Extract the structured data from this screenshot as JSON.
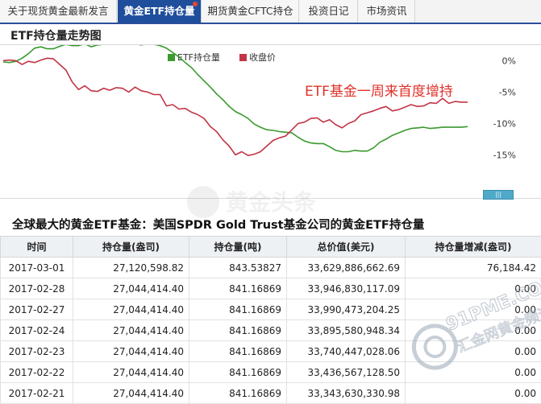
{
  "tabs": [
    {
      "label": "关于现货黄金最新发言",
      "active": false
    },
    {
      "label": "黄金ETF持仓量",
      "active": true
    },
    {
      "label": "期货黄金CFTC持仓",
      "active": false
    },
    {
      "label": "投资日记",
      "active": false
    },
    {
      "label": "市场资讯",
      "active": false
    }
  ],
  "section_title": "ETF持仓量走势图",
  "chart_data": {
    "type": "line",
    "annotation": "ETF基金一周来首度增持",
    "legend_placement": "top-center",
    "y_ticks": [
      "0%",
      "-5%",
      "-10%",
      "-15%"
    ],
    "ylim": [
      -17,
      3
    ],
    "grid": false,
    "series": [
      {
        "name": "ETF持仓量",
        "color": "#3a9a2e",
        "values": [
          -0.2,
          -0.3,
          -0.1,
          0.4,
          1.1,
          2.0,
          2.2,
          1.9,
          1.9,
          2.3,
          2.6,
          2.4,
          2.4,
          2.7,
          2.2,
          2.5,
          2.6,
          2.7,
          2.8,
          3.0,
          3.1,
          2.7,
          2.5,
          2.7,
          2.6,
          2.4,
          2.0,
          1.3,
          0.6,
          -0.3,
          -1.1,
          -2.2,
          -3.2,
          -4.2,
          -5.3,
          -6.2,
          -7.3,
          -8.1,
          -8.6,
          -9.2,
          -10.1,
          -10.6,
          -11.0,
          -11.1,
          -11.3,
          -11.4,
          -11.5,
          -12.2,
          -12.8,
          -13.1,
          -13.2,
          -13.2,
          -13.7,
          -14.3,
          -14.5,
          -14.5,
          -14.3,
          -14.4,
          -14.4,
          -13.9,
          -13.0,
          -12.5,
          -11.9,
          -11.5,
          -11.1,
          -10.8,
          -10.7,
          -10.6,
          -10.8,
          -10.7,
          -10.6,
          -10.6,
          -10.6,
          -10.6,
          -10.5
        ]
      },
      {
        "name": "收盘价",
        "color": "#c23546",
        "values": [
          0.0,
          0.1,
          0.0,
          -0.6,
          -0.1,
          -0.3,
          0.1,
          0.4,
          0.3,
          -0.6,
          -1.5,
          -3.4,
          -4.6,
          -4.0,
          -4.8,
          -4.9,
          -4.4,
          -4.7,
          -4.3,
          -4.4,
          -5.0,
          -4.2,
          -4.8,
          -5.0,
          -5.4,
          -5.4,
          -7.2,
          -7.0,
          -7.7,
          -7.6,
          -8.2,
          -8.6,
          -9.2,
          -10.5,
          -11.3,
          -12.6,
          -13.6,
          -15.0,
          -14.5,
          -15.1,
          -14.9,
          -14.5,
          -13.6,
          -12.7,
          -12.3,
          -12.0,
          -11.0,
          -10.0,
          -9.8,
          -9.2,
          -9.1,
          -9.8,
          -9.4,
          -10.2,
          -10.7,
          -10.0,
          -9.6,
          -8.6,
          -8.3,
          -8.0,
          -7.6,
          -7.3,
          -8.0,
          -7.8,
          -7.4,
          -7.0,
          -7.3,
          -7.2,
          -6.7,
          -6.8,
          -6.0,
          -6.8,
          -6.5,
          -6.6,
          -6.6
        ]
      }
    ]
  },
  "table_title": "全球最大的黄金ETF基金：美国SPDR Gold Trust基金公司的黄金ETF持仓量",
  "table": {
    "headers": [
      "时间",
      "持仓量(盎司)",
      "持仓量(吨)",
      "总价值(美元)",
      "持仓量增减(盎司)"
    ],
    "rows": [
      [
        "2017-03-01",
        "27,120,598.82",
        "843.53827",
        "33,629,886,662.69",
        "76,184.42"
      ],
      [
        "2017-02-28",
        "27,044,414.40",
        "841.16869",
        "33,946,830,117.09",
        "0.00"
      ],
      [
        "2017-02-27",
        "27,044,414.40",
        "841.16869",
        "33,990,473,204.25",
        "0.00"
      ],
      [
        "2017-02-24",
        "27,044,414.40",
        "841.16869",
        "33,895,580,948.34",
        "0.00"
      ],
      [
        "2017-02-23",
        "27,044,414.40",
        "841.16869",
        "33,740,447,028.06",
        "0.00"
      ],
      [
        "2017-02-22",
        "27,044,414.40",
        "841.16869",
        "33,436,567,128.50",
        "0.00"
      ],
      [
        "2017-02-21",
        "27,044,414.40",
        "841.16869",
        "33,343,630,330.98",
        "0.00"
      ]
    ]
  },
  "watermarks": {
    "top_text": "黄金头条",
    "right_text": "91PME.COM",
    "right_sub": "汇金网黄金频道"
  },
  "scroll_handle_label": "|||"
}
